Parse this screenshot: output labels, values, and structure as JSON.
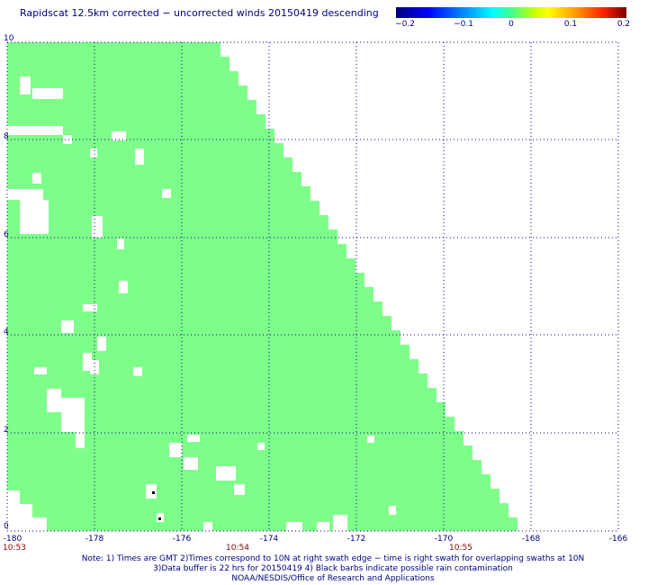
{
  "title": "Rapidscat 12.5km corrected − uncorrected winds 20150419 descending",
  "colorbar": {
    "labels": [
      "−0.2",
      "−0.1",
      "0",
      "0.1",
      "0.2"
    ],
    "range": [
      -0.2,
      0.2
    ]
  },
  "map": {
    "lon_range": [
      -180,
      -166
    ],
    "lat_range": [
      0,
      10
    ],
    "x_tick_labels": [
      "-180",
      "-178",
      "-176",
      "-174",
      "-172",
      "-170",
      "-168",
      "-166"
    ],
    "y_tick_labels": [
      "0",
      "2",
      "4",
      "6",
      "8",
      "10"
    ],
    "fill_color": "#7eff8a",
    "grid_color": "#00008b",
    "time_labels": [
      "10:53",
      "10:54",
      "10:55"
    ]
  },
  "notes": {
    "line1": "Note: 1) Times are GMT 2)Times correspond to 10N at right swath edge − time is right swath for overlapping swaths at 10N",
    "line2": "3)Data buffer is 22 hrs for 20150419 4) Black barbs indicate possible rain contamination",
    "line3": "NOAA/NESDIS/Office of Research and Applications"
  }
}
